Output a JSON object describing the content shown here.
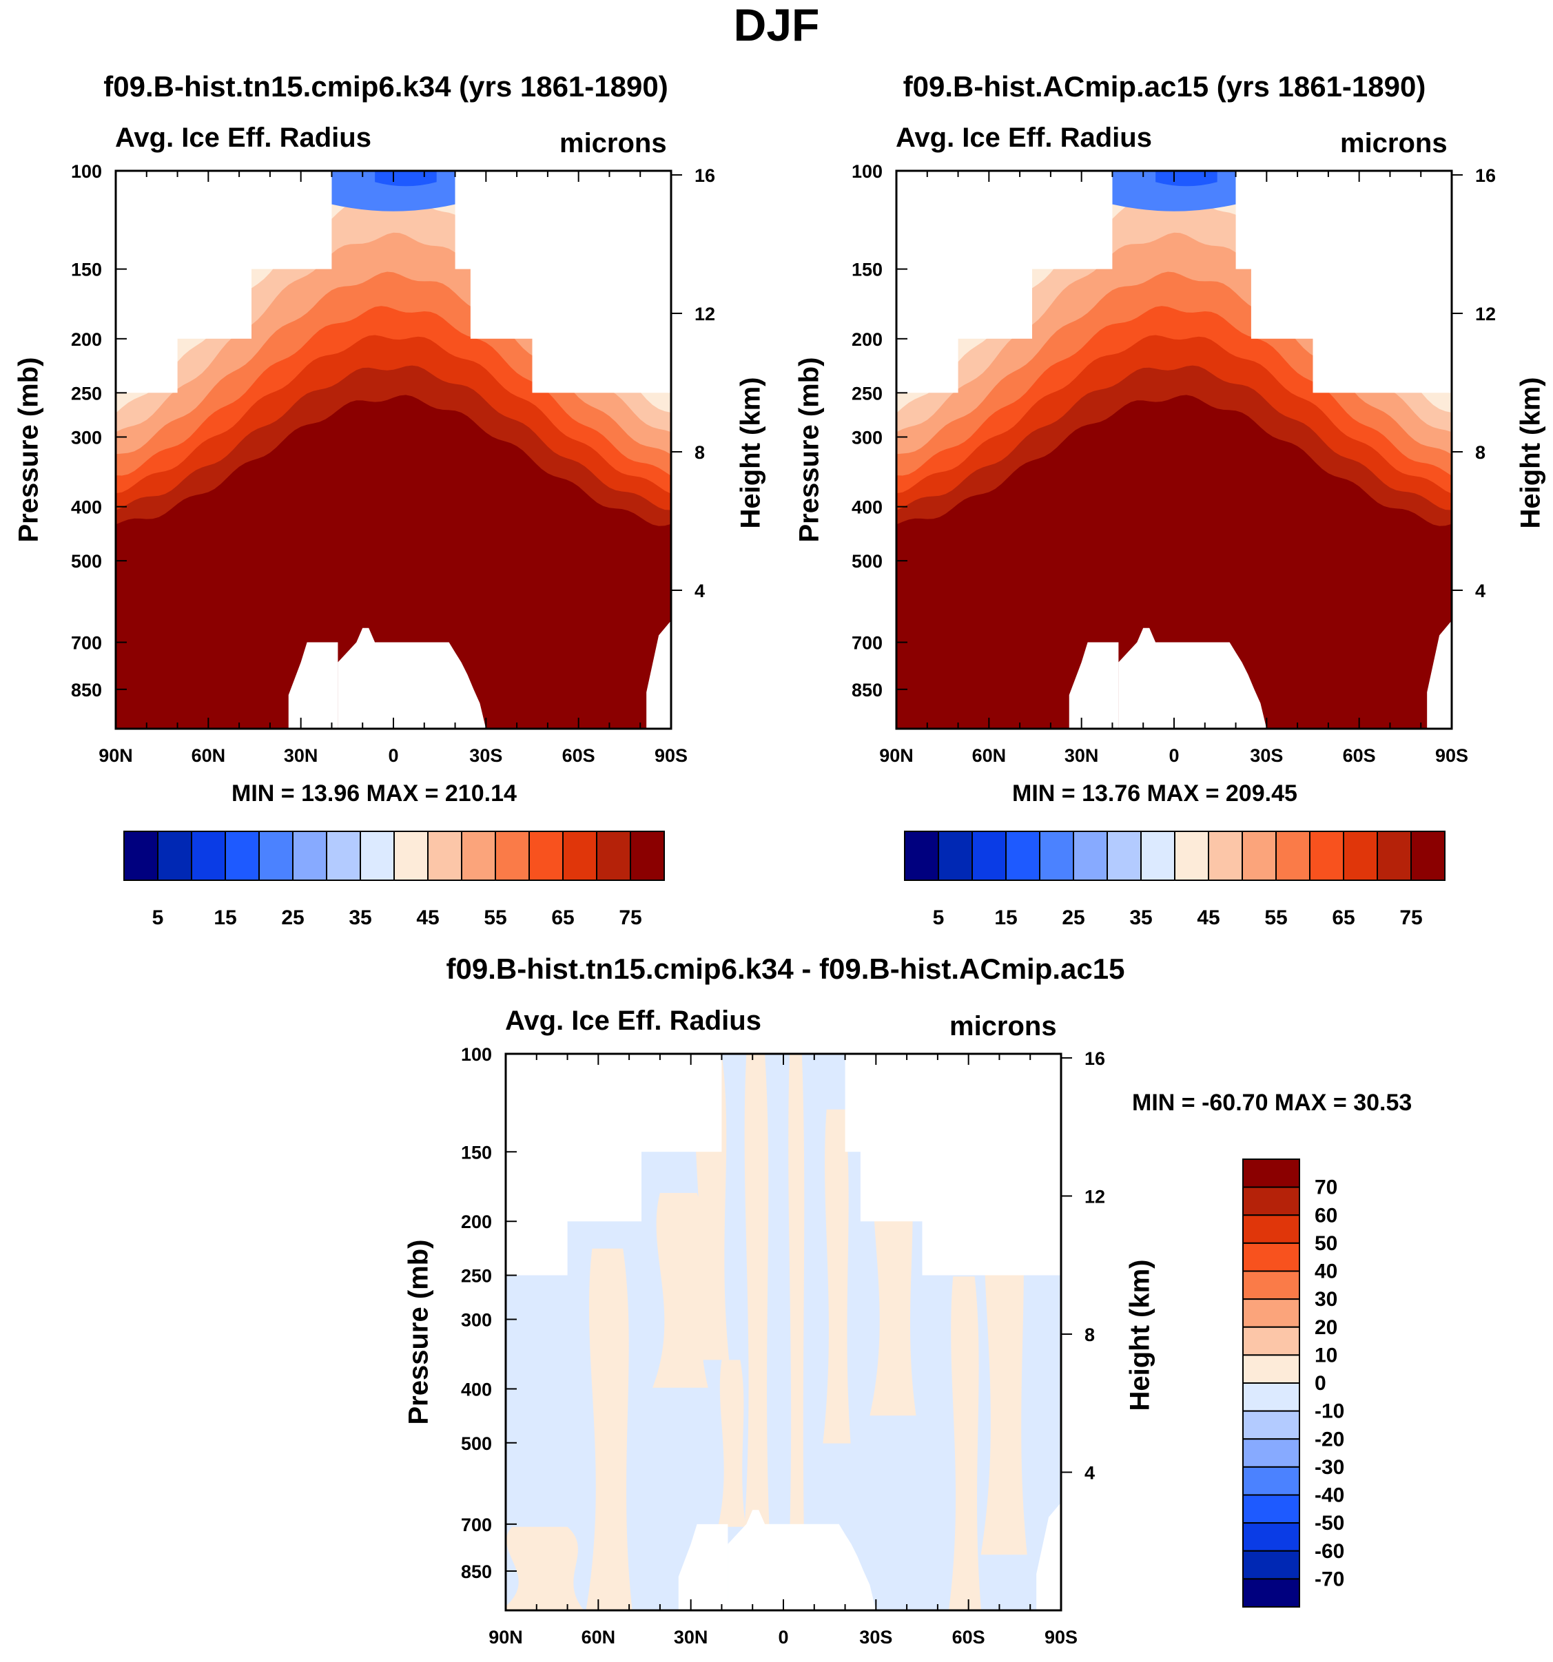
{
  "figure": {
    "season": "DJF",
    "case1": "f09.B-hist.tn15.cmip6.k34 (yrs 1861-1890)",
    "case2": "f09.B-hist.ACmip.ac15 (yrs 1861-1890)",
    "diff_title": "f09.B-hist.tn15.cmip6.k34 - f09.B-hist.ACmip.ac15",
    "left_string": "Avg. Ice Eff. Radius",
    "right_string": "microns",
    "ylabel_left": "Pressure (mb)",
    "ylabel_right": "Height (km)",
    "panel1_stats": "MIN =  13.96  MAX = 210.14",
    "panel2_stats": "MIN =  13.76  MAX = 209.45",
    "diff_stats": "MIN = -60.70  MAX =  30.53"
  },
  "chart_data": [
    {
      "type": "heatmap",
      "subtype": "zonal-mean pressure-latitude contour",
      "title": "f09.B-hist.tn15.cmip6.k34 (yrs 1861-1890)",
      "variable": "Avg. Ice Eff. Radius",
      "units": "microns",
      "x_ticks": [
        "90N",
        "60N",
        "30N",
        "0",
        "30S",
        "60S",
        "90S"
      ],
      "y_ticks": [
        "100",
        "150",
        "200",
        "250",
        "300",
        "400",
        "500",
        "700",
        "850"
      ],
      "y2_ticks": [
        "16",
        "12",
        "8",
        "4"
      ],
      "xlabel": "",
      "ylabel": "Pressure (mb)",
      "y2label": "Height (km)",
      "min": 13.96,
      "max": 210.14,
      "contour_levels": [
        5,
        10,
        15,
        20,
        25,
        30,
        35,
        40,
        45,
        50,
        55,
        60,
        65,
        70,
        75
      ],
      "colorbar_labels": [
        "5",
        "15",
        "25",
        "35",
        "45",
        "55",
        "65",
        "75"
      ]
    },
    {
      "type": "heatmap",
      "subtype": "zonal-mean pressure-latitude contour",
      "title": "f09.B-hist.ACmip.ac15 (yrs 1861-1890)",
      "variable": "Avg. Ice Eff. Radius",
      "units": "microns",
      "x_ticks": [
        "90N",
        "60N",
        "30N",
        "0",
        "30S",
        "60S",
        "90S"
      ],
      "y_ticks": [
        "100",
        "150",
        "200",
        "250",
        "300",
        "400",
        "500",
        "700",
        "850"
      ],
      "y2_ticks": [
        "16",
        "12",
        "8",
        "4"
      ],
      "xlabel": "",
      "ylabel": "Pressure (mb)",
      "y2label": "Height (km)",
      "min": 13.76,
      "max": 209.45,
      "contour_levels": [
        5,
        10,
        15,
        20,
        25,
        30,
        35,
        40,
        45,
        50,
        55,
        60,
        65,
        70,
        75
      ],
      "colorbar_labels": [
        "5",
        "15",
        "25",
        "35",
        "45",
        "55",
        "65",
        "75"
      ]
    },
    {
      "type": "heatmap",
      "subtype": "zonal-mean pressure-latitude difference contour",
      "title": "f09.B-hist.tn15.cmip6.k34 - f09.B-hist.ACmip.ac15",
      "variable": "Avg. Ice Eff. Radius",
      "units": "microns",
      "x_ticks": [
        "90N",
        "60N",
        "30N",
        "0",
        "30S",
        "60S",
        "90S"
      ],
      "y_ticks": [
        "100",
        "150",
        "200",
        "250",
        "300",
        "400",
        "500",
        "700",
        "850"
      ],
      "y2_ticks": [
        "16",
        "12",
        "8",
        "4"
      ],
      "xlabel": "",
      "ylabel": "Pressure (mb)",
      "y2label": "Height (km)",
      "min": -60.7,
      "max": 30.53,
      "contour_levels": [
        -70,
        -60,
        -50,
        -40,
        -30,
        -20,
        -10,
        0,
        10,
        20,
        30,
        40,
        50,
        60,
        70
      ],
      "colorbar_labels": [
        "70",
        "60",
        "50",
        "40",
        "30",
        "20",
        "10",
        "0",
        "-10",
        "-20",
        "-30",
        "-40",
        "-50",
        "-60",
        "-70"
      ]
    }
  ],
  "colors": {
    "main_scale": [
      "#00007f",
      "#0028b4",
      "#0a3ce6",
      "#1e5aff",
      "#4b82ff",
      "#87aaff",
      "#b3cbff",
      "#dceaff",
      "#fdebd9",
      "#fcc6a8",
      "#fba47b",
      "#fa7b48",
      "#f8521e",
      "#e0360a",
      "#b52209",
      "#8b0000"
    ],
    "diff_scale_top_to_bottom": [
      "#8b0000",
      "#b52209",
      "#e0360a",
      "#f8521e",
      "#fa7b48",
      "#fba47b",
      "#fcc6a8",
      "#fdebd9",
      "#dceaff",
      "#b3cbff",
      "#87aaff",
      "#4b82ff",
      "#1e5aff",
      "#0a3ce6",
      "#0028b4",
      "#00007f"
    ]
  }
}
